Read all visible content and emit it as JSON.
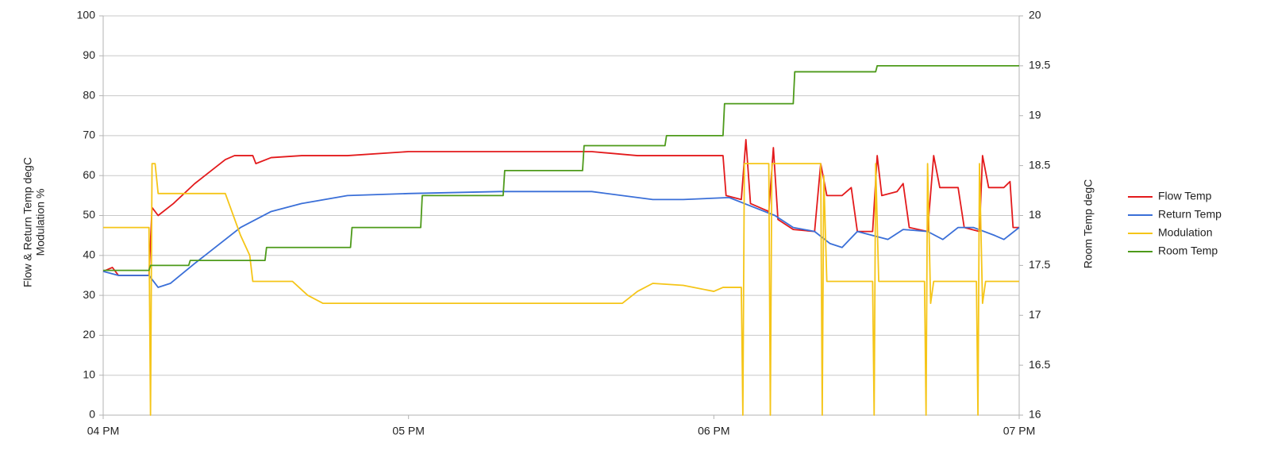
{
  "chart_data": {
    "type": "line",
    "ylabel": [
      "Flow & Return Temp degC",
      "Modulation %"
    ],
    "y2label": "Room Temp degC",
    "xlim": [
      16,
      19
    ],
    "xticks": [
      {
        "value": 16,
        "label": "04 PM"
      },
      {
        "value": 17,
        "label": "05 PM"
      },
      {
        "value": 18,
        "label": "06 PM"
      },
      {
        "value": 19,
        "label": "07 PM"
      }
    ],
    "ylim": [
      0,
      100
    ],
    "yticks": [
      0,
      10,
      20,
      30,
      40,
      50,
      60,
      70,
      80,
      90,
      100
    ],
    "y2lim": [
      16,
      20
    ],
    "y2ticks": [
      16,
      16.5,
      17,
      17.5,
      18,
      18.5,
      19,
      19.5,
      20
    ],
    "grid": true,
    "legend": "right",
    "series": [
      {
        "name": "Flow Temp",
        "color": "#e31a1c",
        "x": [
          16,
          16.03,
          16.05,
          16.15,
          16.16,
          16.18,
          16.23,
          16.3,
          16.4,
          16.43,
          16.49,
          16.5,
          16.55,
          16.65,
          16.8,
          17,
          17.5,
          17.6,
          17.75,
          17.95,
          18.03,
          18.04,
          18.09,
          18.105,
          18.12,
          18.18,
          18.195,
          18.21,
          18.26,
          18.33,
          18.35,
          18.37,
          18.42,
          18.45,
          18.47,
          18.52,
          18.535,
          18.55,
          18.6,
          18.62,
          18.64,
          18.7,
          18.72,
          18.74,
          18.8,
          18.82,
          18.87,
          18.88,
          18.9,
          18.95,
          18.97,
          18.98,
          19
        ],
        "values": [
          36,
          37,
          35,
          35,
          52,
          50,
          53,
          58,
          64,
          65,
          65,
          63,
          64.5,
          65,
          65,
          66,
          66,
          66,
          65,
          65,
          65,
          55,
          54,
          69,
          53,
          51,
          67,
          49,
          46.5,
          46,
          63,
          55,
          55,
          57,
          46,
          46,
          65,
          55,
          56,
          58,
          47,
          46,
          65,
          57,
          57,
          47,
          46,
          65,
          57,
          57,
          58.5,
          47,
          47
        ]
      },
      {
        "name": "Return Temp",
        "color": "#3a6fd8",
        "x": [
          16,
          16.05,
          16.15,
          16.18,
          16.22,
          16.3,
          16.45,
          16.55,
          16.65,
          16.8,
          17,
          17.3,
          17.6,
          17.8,
          17.9,
          18.05,
          18.1,
          18.2,
          18.26,
          18.33,
          18.38,
          18.42,
          18.47,
          18.52,
          18.57,
          18.62,
          18.7,
          18.75,
          18.8,
          18.85,
          18.92,
          18.95,
          19
        ],
        "values": [
          36,
          35,
          35,
          32,
          33,
          38,
          47,
          51,
          53,
          55,
          55.5,
          56,
          56,
          54,
          54,
          54.5,
          53,
          50,
          47,
          46,
          43,
          42,
          46,
          45,
          44,
          46.5,
          46,
          44,
          47,
          47,
          45,
          44,
          47
        ]
      },
      {
        "name": "Modulation",
        "color": "#f5c518",
        "x": [
          16,
          16.15,
          16.155,
          16.16,
          16.17,
          16.18,
          16.4,
          16.45,
          16.48,
          16.49,
          16.62,
          16.67,
          16.72,
          17.7,
          17.75,
          17.8,
          17.9,
          18,
          18.03,
          18.09,
          18.095,
          18.1,
          18.18,
          18.185,
          18.19,
          18.35,
          18.355,
          18.36,
          18.37,
          18.52,
          18.525,
          18.53,
          18.54,
          18.69,
          18.695,
          18.7,
          18.71,
          18.72,
          18.86,
          18.865,
          18.87,
          18.88,
          18.89,
          19
        ],
        "values": [
          47,
          47,
          0,
          63,
          63,
          55.5,
          55.5,
          45,
          40,
          33.5,
          33.5,
          30,
          28,
          28,
          31,
          33,
          32.5,
          31,
          32,
          32,
          0,
          63,
          63,
          0,
          63,
          63,
          0,
          60,
          33.5,
          33.5,
          0,
          63,
          33.5,
          33.5,
          0,
          63,
          28,
          33.5,
          33.5,
          0,
          63,
          28,
          33.5,
          33.5
        ]
      },
      {
        "name": "Room Temp",
        "color": "#4d9a1a",
        "axis": "y2",
        "x": [
          16,
          16.15,
          16.155,
          16.28,
          16.285,
          16.53,
          16.535,
          16.81,
          16.815,
          17.04,
          17.045,
          17.31,
          17.315,
          17.57,
          17.575,
          17.84,
          17.845,
          18.03,
          18.035,
          18.26,
          18.265,
          18.53,
          18.535,
          19
        ],
        "values": [
          17.45,
          17.45,
          17.5,
          17.5,
          17.55,
          17.55,
          17.68,
          17.68,
          17.88,
          17.88,
          18.2,
          18.2,
          18.45,
          18.45,
          18.7,
          18.7,
          18.8,
          18.8,
          19.12,
          19.12,
          19.44,
          19.44,
          19.5,
          19.5
        ]
      }
    ]
  }
}
